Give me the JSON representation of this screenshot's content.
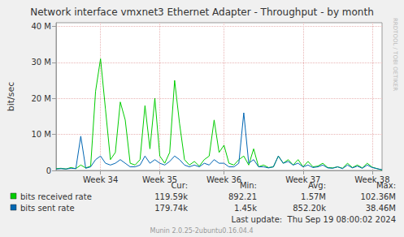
{
  "chart_data": {
    "type": "line",
    "title": "Network interface vmxnet3 Ethernet Adapter - Throughput - by month",
    "y_label": "bit/sec",
    "x": [
      0,
      0.5,
      1,
      1.5,
      2,
      2.5,
      3,
      3.5,
      4,
      4.5,
      5,
      5.5,
      6,
      6.5,
      7,
      7.5,
      8,
      8.5,
      9,
      9.5,
      10,
      10.5,
      11,
      11.5,
      12,
      12.5,
      13,
      13.5,
      14,
      14.5,
      15,
      15.5,
      16,
      16.5,
      17,
      17.5,
      18,
      18.5,
      19,
      19.5,
      20,
      20.5,
      21,
      21.5,
      22,
      22.5,
      23,
      23.5,
      24,
      24.5,
      25,
      25.5,
      26,
      26.5,
      27,
      27.5,
      28,
      28.5,
      29,
      29.5,
      30,
      30.5,
      31,
      31.5,
      32,
      32.5,
      33
    ],
    "xlim": [
      0,
      33
    ],
    "xticks": [
      {
        "value": 4.5,
        "label": "Week 34"
      },
      {
        "value": 10.5,
        "label": "Week 35"
      },
      {
        "value": 17,
        "label": "Week 36"
      },
      {
        "value": 25,
        "label": "Week 37"
      },
      {
        "value": 32,
        "label": "Week 38"
      }
    ],
    "ylim": [
      0,
      41000000
    ],
    "yticks": [
      0,
      {
        "value": 10000000,
        "label": "10 M"
      },
      {
        "value": 20000000,
        "label": "20 M"
      },
      {
        "value": 30000000,
        "label": "30 M"
      },
      {
        "value": 40000000,
        "label": "40 M"
      }
    ],
    "grid": true,
    "series": [
      {
        "name": "bits received rate",
        "color": "#00cc00",
        "values": [
          500000,
          600000,
          400000,
          800000,
          500000,
          1500000,
          700000,
          1200000,
          22000000,
          31000000,
          17000000,
          3000000,
          5000000,
          19000000,
          14000000,
          2000000,
          1500000,
          3000000,
          18000000,
          6000000,
          20000000,
          4000000,
          2000000,
          5000000,
          25000000,
          13000000,
          3000000,
          1500000,
          2500000,
          1200000,
          3000000,
          4000000,
          14000000,
          5000000,
          7000000,
          2000000,
          1500000,
          3000000,
          4000000,
          1500000,
          6000000,
          1000000,
          1500000,
          800000,
          1000000,
          4000000,
          2000000,
          3000000,
          1500000,
          3000000,
          1000000,
          2500000,
          1000000,
          1200000,
          2000000,
          800000,
          700000,
          1000000,
          600000,
          2000000,
          800000,
          1500000,
          700000,
          2000000,
          900000,
          500000,
          120000
        ],
        "stats": [
          "119.59k",
          "892.21",
          "1.57M",
          "102.36M"
        ]
      },
      {
        "name": "bits sent rate",
        "color": "#0066b3",
        "values": [
          400000,
          500000,
          400000,
          600000,
          500000,
          9500000,
          600000,
          1000000,
          3000000,
          4000000,
          2000000,
          1500000,
          2000000,
          3000000,
          2000000,
          1000000,
          1000000,
          1500000,
          4000000,
          2000000,
          3000000,
          2000000,
          1500000,
          2500000,
          4000000,
          3000000,
          1500000,
          1000000,
          1500000,
          1000000,
          2000000,
          1500000,
          3000000,
          2000000,
          2000000,
          1000000,
          1000000,
          2000000,
          16000000,
          2000000,
          3000000,
          1000000,
          1000000,
          700000,
          1000000,
          4000000,
          2000000,
          2500000,
          1500000,
          2000000,
          1000000,
          1500000,
          800000,
          1000000,
          1500000,
          700000,
          600000,
          1000000,
          500000,
          1500000,
          700000,
          1200000,
          600000,
          1500000,
          800000,
          500000,
          180000
        ],
        "stats": [
          "179.74k",
          "1.45k",
          "852.20k",
          "38.46M"
        ]
      }
    ],
    "stats_headers": [
      "Cur:",
      "Min:",
      "Avg:",
      "Max:"
    ],
    "last_update": "Last update:  Thu Sep 19 08:00:02 2024",
    "footer": "Munin 2.0.25-2ubuntu0.16.04.4",
    "side_text": "RRDTOOL / TOBI OETIKER"
  }
}
